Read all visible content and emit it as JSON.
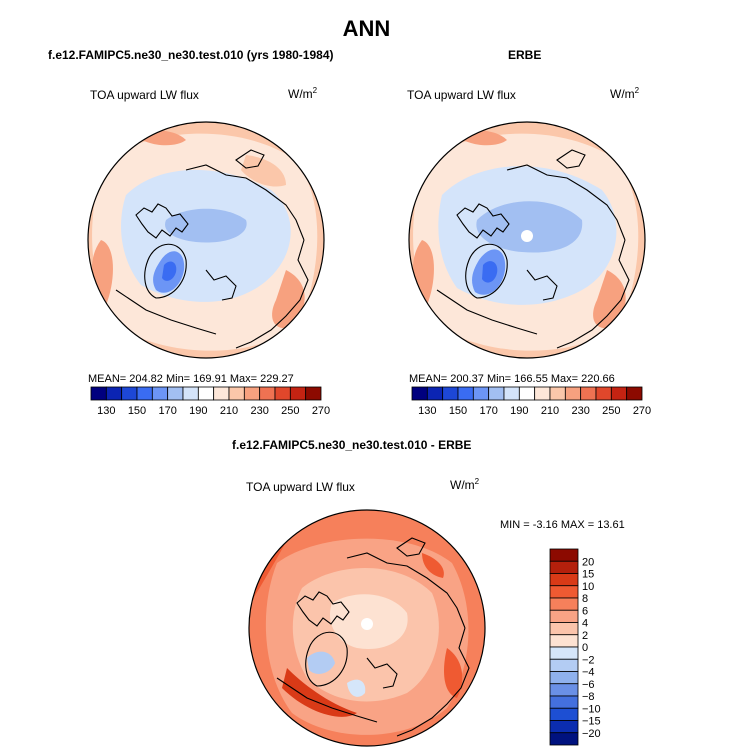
{
  "main_title": "ANN",
  "panel_left": {
    "title": "f.e12.FAMIPC5.ne30_ne30.test.010 (yrs 1980-1984)",
    "variable": "TOA upward LW flux",
    "units_base": "W/m",
    "units_exp": "2",
    "stats": "MEAN= 204.82   Min= 169.91   Max= 229.27"
  },
  "panel_right": {
    "title": "ERBE",
    "variable": "TOA upward LW flux",
    "units_base": "W/m",
    "units_exp": "2",
    "stats": "MEAN= 200.37   Min= 166.55   Max= 220.66"
  },
  "panel_diff": {
    "title": "f.e12.FAMIPC5.ne30_ne30.test.010 - ERBE",
    "variable": "TOA upward LW flux",
    "units_base": "W/m",
    "units_exp": "2",
    "stats": "MIN =  -3.16 MAX =  13.61"
  },
  "abs_colorbar": {
    "colors": [
      "#00007f",
      "#0b24b3",
      "#1d47d6",
      "#3a6cf2",
      "#6c95f5",
      "#a2bff2",
      "#d4e4fa",
      "#ffffff",
      "#fde7d9",
      "#fbc7aa",
      "#f7a17f",
      "#ef7252",
      "#e0472b",
      "#c42312",
      "#8c0a00"
    ],
    "tick_labels": [
      "130",
      "150",
      "170",
      "190",
      "210",
      "230",
      "250",
      "270"
    ]
  },
  "diff_colorbar": {
    "colors": [
      "#8c0a00",
      "#b4200c",
      "#d93a17",
      "#ef5a32",
      "#f6805b",
      "#f9a385",
      "#fbc4ab",
      "#fde2d2",
      "#d5e6fa",
      "#b3ccf3",
      "#8fb1ed",
      "#6a90e6",
      "#4470de",
      "#1d4fd3",
      "#0b2db0",
      "#00127f"
    ],
    "tick_labels": [
      "20",
      "15",
      "10",
      "8",
      "6",
      "4",
      "2",
      "0",
      "−2",
      "−4",
      "−6",
      "−8",
      "−10",
      "−15",
      "−20"
    ]
  }
}
